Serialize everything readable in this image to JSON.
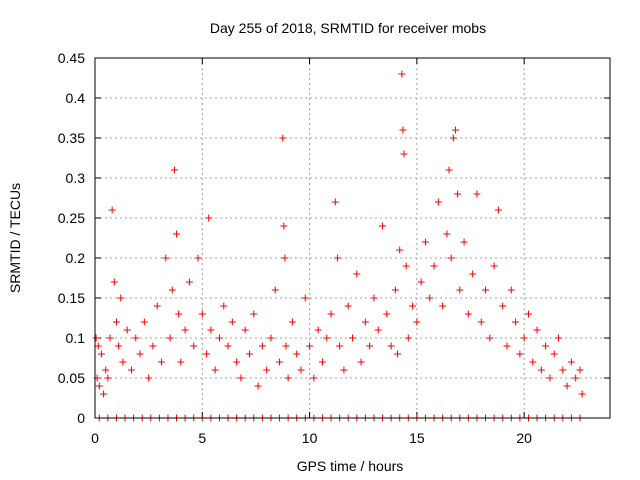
{
  "chart_data": {
    "type": "scatter",
    "title": "Day 255 of 2018, SRMTID for receiver mobs",
    "xlabel": "GPS time / hours",
    "ylabel": "SRMTID / TECUs",
    "xlim": [
      0,
      24
    ],
    "ylim": [
      0,
      0.45
    ],
    "xticks": [
      0,
      5,
      10,
      15,
      20
    ],
    "xtick_labels": [
      "0",
      "5",
      "10",
      "15",
      "20"
    ],
    "yticks": [
      0,
      0.05,
      0.1,
      0.15,
      0.2,
      0.25,
      0.3,
      0.35,
      0.4,
      0.45
    ],
    "ytick_labels": [
      "0",
      "0.05",
      "0.1",
      "0.15",
      "0.2",
      "0.25",
      "0.3",
      "0.35",
      "0.4",
      "0.45"
    ],
    "grid": true,
    "marker": "plus",
    "color": "#ff0000",
    "series": [
      {
        "name": "SRMTID",
        "x": [
          0.05,
          0.1,
          0.15,
          0.2,
          0.3,
          0.4,
          0.5,
          0.6,
          0.7,
          0.8,
          0.9,
          1.0,
          1.1,
          1.2,
          1.3,
          1.5,
          1.7,
          1.9,
          2.1,
          2.3,
          2.5,
          2.7,
          2.9,
          3.1,
          3.3,
          3.5,
          3.6,
          3.7,
          3.8,
          3.9,
          4.0,
          4.2,
          4.4,
          4.6,
          4.8,
          5.0,
          5.2,
          5.3,
          5.4,
          5.6,
          5.8,
          6.0,
          6.2,
          6.4,
          6.6,
          6.8,
          7.0,
          7.2,
          7.4,
          7.6,
          7.8,
          8.0,
          8.2,
          8.4,
          8.6,
          8.75,
          8.8,
          8.85,
          8.9,
          9.0,
          9.2,
          9.4,
          9.6,
          9.8,
          10.0,
          10.2,
          10.4,
          10.6,
          10.8,
          11.0,
          11.2,
          11.3,
          11.4,
          11.6,
          11.8,
          12.0,
          12.2,
          12.4,
          12.6,
          12.8,
          13.0,
          13.2,
          13.4,
          13.6,
          13.8,
          14.0,
          14.1,
          14.2,
          14.3,
          14.35,
          14.4,
          14.5,
          14.6,
          14.8,
          15.0,
          15.2,
          15.4,
          15.6,
          15.8,
          16.0,
          16.2,
          16.4,
          16.5,
          16.6,
          16.7,
          16.8,
          16.9,
          17.0,
          17.2,
          17.4,
          17.6,
          17.8,
          18.0,
          18.2,
          18.4,
          18.6,
          18.8,
          19.0,
          19.2,
          19.4,
          19.6,
          19.8,
          20.0,
          20.2,
          20.4,
          20.6,
          20.8,
          21.0,
          21.2,
          21.4,
          21.6,
          21.8,
          22.0,
          22.2,
          22.4,
          22.6,
          22.7
        ],
        "y": [
          0.1,
          0.05,
          0.09,
          0.04,
          0.08,
          0.03,
          0.06,
          0.05,
          0.1,
          0.26,
          0.17,
          0.12,
          0.09,
          0.15,
          0.07,
          0.11,
          0.06,
          0.1,
          0.08,
          0.12,
          0.05,
          0.09,
          0.14,
          0.07,
          0.2,
          0.1,
          0.16,
          0.31,
          0.23,
          0.13,
          0.07,
          0.11,
          0.17,
          0.09,
          0.2,
          0.13,
          0.08,
          0.25,
          0.11,
          0.06,
          0.1,
          0.14,
          0.09,
          0.12,
          0.07,
          0.05,
          0.11,
          0.08,
          0.13,
          0.04,
          0.09,
          0.06,
          0.1,
          0.16,
          0.07,
          0.35,
          0.24,
          0.2,
          0.09,
          0.05,
          0.12,
          0.08,
          0.06,
          0.15,
          0.09,
          0.05,
          0.11,
          0.07,
          0.1,
          0.13,
          0.27,
          0.2,
          0.09,
          0.06,
          0.14,
          0.1,
          0.18,
          0.07,
          0.12,
          0.09,
          0.15,
          0.11,
          0.24,
          0.13,
          0.09,
          0.16,
          0.08,
          0.21,
          0.43,
          0.36,
          0.33,
          0.19,
          0.1,
          0.14,
          0.12,
          0.17,
          0.22,
          0.15,
          0.19,
          0.27,
          0.14,
          0.23,
          0.31,
          0.2,
          0.35,
          0.36,
          0.28,
          0.16,
          0.22,
          0.13,
          0.18,
          0.28,
          0.12,
          0.16,
          0.1,
          0.19,
          0.26,
          0.14,
          0.09,
          0.16,
          0.12,
          0.08,
          0.1,
          0.13,
          0.07,
          0.11,
          0.06,
          0.09,
          0.05,
          0.08,
          0.1,
          0.06,
          0.04,
          0.07,
          0.05,
          0.06,
          0.03
        ],
        "zero_x": [
          0.2,
          0.6,
          1.0,
          1.4,
          1.8,
          2.2,
          2.6,
          3.0,
          3.4,
          3.8,
          4.2,
          4.6,
          5.0,
          5.4,
          5.8,
          6.2,
          6.6,
          7.0,
          7.4,
          7.8,
          8.2,
          8.6,
          9.0,
          9.4,
          9.8,
          10.2,
          10.6,
          11.0,
          11.4,
          11.8,
          12.2,
          12.6,
          13.0,
          13.4,
          13.8,
          14.2,
          14.6,
          15.0,
          15.4,
          15.8,
          16.2,
          16.6,
          17.0,
          17.4,
          17.8,
          18.2,
          18.6,
          19.0,
          19.4,
          19.8,
          20.2,
          20.6,
          21.0,
          21.4,
          21.8,
          22.2,
          22.6
        ],
        "zero_y": 0
      }
    ]
  }
}
